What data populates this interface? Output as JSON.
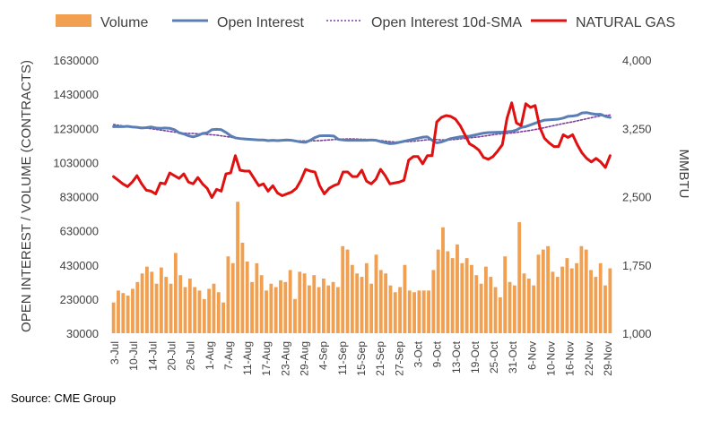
{
  "source": "Source: CME Group",
  "colors": {
    "volume": "#F0A050",
    "open_interest": "#5B7FB5",
    "sma": "#7B3F9A",
    "natural_gas": "#E01010",
    "text": "#404040",
    "grid": "#d9d9d9"
  },
  "chart_data": {
    "type": "bar",
    "left_axis": {
      "label": "OPEN INTEREST / VOLUME (CONTRACTS)",
      "ylim": [
        30000,
        1630000
      ],
      "ticks": [
        "30000",
        "230000",
        "430000",
        "630000",
        "830000",
        "1030000",
        "1230000",
        "1430000",
        "1630000"
      ]
    },
    "right_axis": {
      "label": "MMBTU",
      "ylim": [
        1000,
        4000
      ],
      "ticks": [
        "1,000",
        "1,750",
        "2,500",
        "3,250",
        "4,000"
      ]
    },
    "grid": true,
    "legend_position": "top",
    "x_tick_labels": [
      "3-Jul",
      "10-Jul",
      "14-Jul",
      "20-Jul",
      "26-Jul",
      "1-Aug",
      "7-Aug",
      "11-Aug",
      "17-Aug",
      "23-Aug",
      "29-Aug",
      "4-Sep",
      "11-Sep",
      "15-Sep",
      "21-Sep",
      "27-Sep",
      "3-Oct",
      "9-Oct",
      "13-Oct",
      "19-Oct",
      "25-Oct",
      "31-Oct",
      "6-Nov",
      "10-Nov",
      "16-Nov",
      "22-Nov",
      "29-Nov"
    ],
    "series": [
      {
        "name": "Volume",
        "kind": "bar",
        "axis": "left",
        "values": [
          210000,
          280000,
          265000,
          250000,
          290000,
          330000,
          380000,
          420000,
          390000,
          320000,
          415000,
          360000,
          320000,
          500000,
          370000,
          300000,
          350000,
          300000,
          280000,
          230000,
          290000,
          320000,
          270000,
          210000,
          480000,
          440000,
          800000,
          560000,
          450000,
          330000,
          440000,
          370000,
          280000,
          320000,
          300000,
          340000,
          330000,
          400000,
          230000,
          390000,
          380000,
          310000,
          370000,
          300000,
          350000,
          310000,
          330000,
          300000,
          540000,
          520000,
          430000,
          380000,
          360000,
          440000,
          320000,
          490000,
          400000,
          380000,
          310000,
          270000,
          300000,
          430000,
          280000,
          270000,
          280000,
          280000,
          280000,
          400000,
          520000,
          650000,
          510000,
          470000,
          550000,
          440000,
          470000,
          430000,
          370000,
          320000,
          420000,
          360000,
          300000,
          240000,
          480000,
          330000,
          310000,
          680000,
          380000,
          350000,
          310000,
          490000,
          520000,
          540000,
          390000,
          360000,
          420000,
          470000,
          410000,
          440000,
          540000,
          520000,
          400000,
          360000,
          440000,
          310000,
          410000
        ]
      },
      {
        "name": "Open Interest",
        "kind": "line",
        "axis": "left",
        "values": [
          1240000,
          1240000,
          1240000,
          1242000,
          1238000,
          1236000,
          1232000,
          1234000,
          1238000,
          1232000,
          1230000,
          1232000,
          1230000,
          1222000,
          1204000,
          1197000,
          1186000,
          1180000,
          1188000,
          1200000,
          1204000,
          1222000,
          1224000,
          1222000,
          1206000,
          1186000,
          1174000,
          1170000,
          1168000,
          1166000,
          1164000,
          1162000,
          1162000,
          1158000,
          1160000,
          1158000,
          1160000,
          1162000,
          1160000,
          1155000,
          1150000,
          1148000,
          1160000,
          1176000,
          1186000,
          1187000,
          1187000,
          1185000,
          1165000,
          1162000,
          1160000,
          1160000,
          1160000,
          1160000,
          1160000,
          1162000,
          1160000,
          1152000,
          1146000,
          1140000,
          1142000,
          1148000,
          1154000,
          1160000,
          1166000,
          1172000,
          1178000,
          1180000,
          1160000,
          1145000,
          1150000,
          1160000,
          1170000,
          1175000,
          1180000,
          1182000,
          1184000,
          1190000,
          1196000,
          1202000,
          1205000,
          1206000,
          1207000,
          1208000,
          1210000,
          1212000,
          1220000,
          1235000,
          1240000,
          1250000,
          1260000,
          1270000,
          1278000,
          1280000,
          1282000,
          1284000,
          1290000,
          1300000,
          1302000,
          1306000,
          1320000,
          1322000,
          1316000,
          1312000,
          1312000,
          1300000,
          1294000
        ]
      },
      {
        "name": "Open Interest 10d-SMA",
        "kind": "dotted-line",
        "axis": "left",
        "values": [
          1252000,
          1248000,
          1244000,
          1240000,
          1238000,
          1236000,
          1233000,
          1230000,
          1228000,
          1224000,
          1220000,
          1216000,
          1212000,
          1208000,
          1205000,
          1202000,
          1200000,
          1200000,
          1198000,
          1196000,
          1194000,
          1192000,
          1190000,
          1186000,
          1182000,
          1178000,
          1174000,
          1170000,
          1167000,
          1164000,
          1162000,
          1161000,
          1160000,
          1160000,
          1160000,
          1160000,
          1159000,
          1158000,
          1157000,
          1156000,
          1156000,
          1156000,
          1156000,
          1157000,
          1158000,
          1160000,
          1162000,
          1164000,
          1166000,
          1167000,
          1168000,
          1168000,
          1167000,
          1166000,
          1165000,
          1163000,
          1160000,
          1158000,
          1155000,
          1152000,
          1150000,
          1150000,
          1151000,
          1152000,
          1154000,
          1157000,
          1160000,
          1163000,
          1164000,
          1164000,
          1162000,
          1162000,
          1163000,
          1165000,
          1168000,
          1171000,
          1174000,
          1177000,
          1180000,
          1184000,
          1188000,
          1192000,
          1196000,
          1198000,
          1200000,
          1203000,
          1206000,
          1210000,
          1214000,
          1218000,
          1223000,
          1228000,
          1234000,
          1240000,
          1246000,
          1252000,
          1258000,
          1263000,
          1268000,
          1274000,
          1280000,
          1286000,
          1292000,
          1298000,
          1303000,
          1306000,
          1308000
        ]
      },
      {
        "name": "NATURAL GAS",
        "kind": "line",
        "axis": "right",
        "values": [
          2720,
          2680,
          2640,
          2610,
          2660,
          2730,
          2640,
          2570,
          2560,
          2530,
          2650,
          2640,
          2760,
          2730,
          2700,
          2750,
          2660,
          2640,
          2710,
          2640,
          2590,
          2490,
          2580,
          2560,
          2750,
          2760,
          2950,
          2790,
          2780,
          2780,
          2700,
          2620,
          2640,
          2560,
          2620,
          2540,
          2510,
          2530,
          2550,
          2590,
          2680,
          2800,
          2780,
          2770,
          2620,
          2530,
          2590,
          2620,
          2640,
          2770,
          2770,
          2720,
          2720,
          2790,
          2670,
          2640,
          2690,
          2800,
          2730,
          2640,
          2650,
          2660,
          2680,
          2900,
          2940,
          2940,
          2860,
          2950,
          2950,
          3320,
          3370,
          3390,
          3380,
          3350,
          3280,
          3180,
          3080,
          3050,
          3010,
          2930,
          2910,
          2940,
          3000,
          3070,
          3360,
          3530,
          3310,
          3280,
          3520,
          3480,
          3500,
          3260,
          3140,
          3090,
          3050,
          3050,
          3180,
          3150,
          3180,
          3070,
          2980,
          2920,
          2880,
          2920,
          2880,
          2820,
          2950
        ]
      }
    ]
  }
}
